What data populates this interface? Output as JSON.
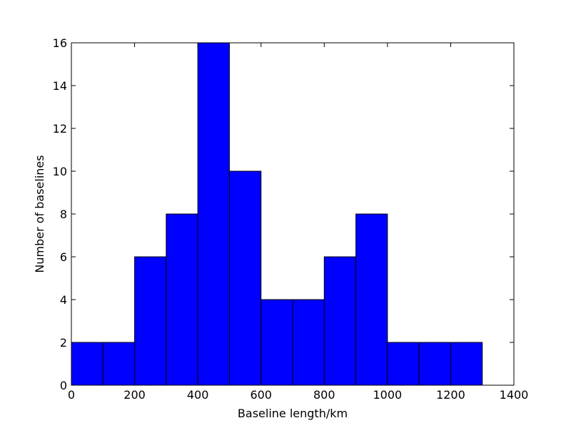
{
  "chart_data": {
    "type": "histogram",
    "xlabel": "Baseline length/km",
    "ylabel": "Number of baselines",
    "bins": [
      0,
      100,
      200,
      300,
      400,
      500,
      600,
      700,
      800,
      900,
      1000,
      1100,
      1200,
      1300
    ],
    "counts": [
      2,
      2,
      6,
      8,
      16,
      10,
      4,
      4,
      6,
      8,
      2,
      2,
      2
    ],
    "color": "#0000ff",
    "xlim": [
      0,
      1400
    ],
    "xticks": [
      0,
      200,
      400,
      600,
      800,
      1000,
      1200,
      1400
    ],
    "ylim": [
      0,
      16
    ],
    "yticks": [
      0,
      2,
      4,
      6,
      8,
      10,
      12,
      14,
      16
    ]
  }
}
